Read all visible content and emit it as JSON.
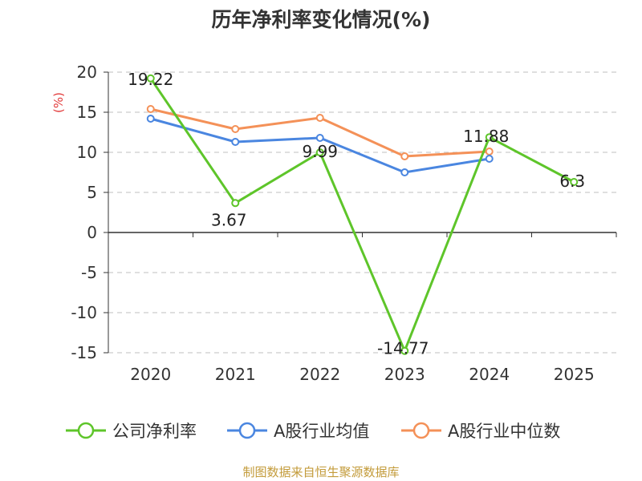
{
  "chart_data": {
    "type": "line",
    "title": "历年净利率变化情况(%)",
    "ylabel": "(%)",
    "xlabel": "",
    "categories": [
      "2020",
      "2021",
      "2022",
      "2023",
      "2024",
      "2025"
    ],
    "ylim": [
      -15,
      20
    ],
    "yticks": [
      20,
      15,
      10,
      5,
      0,
      -5,
      -10,
      -15
    ],
    "grid": true,
    "legend_position": "bottom",
    "series": [
      {
        "name": "公司净利率",
        "color": "#5ec52a",
        "values": [
          19.22,
          3.67,
          9.99,
          -14.77,
          11.88,
          6.3
        ],
        "show_labels": true
      },
      {
        "name": "A股行业均值",
        "color": "#4a86e0",
        "values": [
          14.2,
          11.3,
          11.8,
          7.5,
          9.2,
          null
        ],
        "show_labels": false
      },
      {
        "name": "A股行业中位数",
        "color": "#f49158",
        "values": [
          15.4,
          12.9,
          14.3,
          9.5,
          10.1,
          null
        ],
        "show_labels": false
      }
    ],
    "data_labels": [
      "19.22",
      "3.67",
      "9.99",
      "-14.77",
      "11.88",
      "6.3"
    ]
  },
  "source_note": "制图数据来自恒生聚源数据库",
  "colors": {
    "title": "#333333",
    "axis_text": "#333333",
    "ylabel": "#e23a3a",
    "grid": "#cccccc",
    "axis_line": "#333333",
    "source": "#c39b3a"
  }
}
